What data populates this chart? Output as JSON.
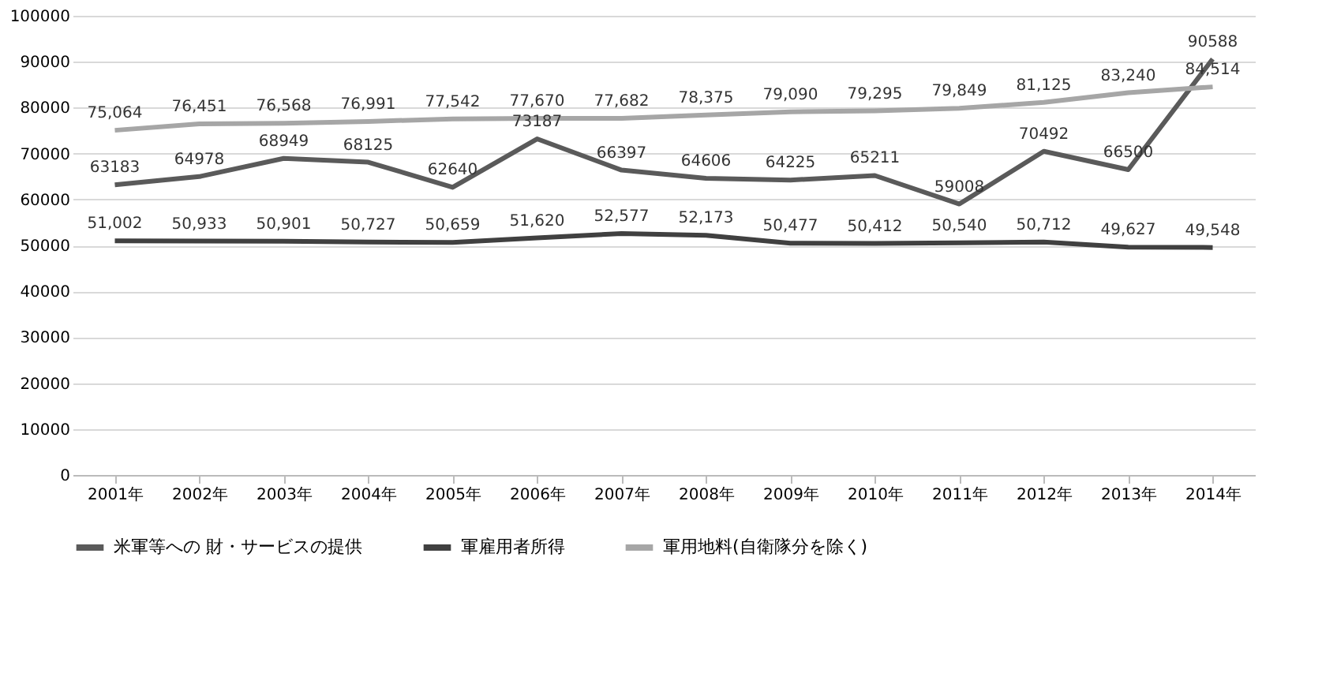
{
  "chart_data": {
    "type": "line",
    "categories": [
      "2001年",
      "2002年",
      "2003年",
      "2004年",
      "2005年",
      "2006年",
      "2007年",
      "2008年",
      "2009年",
      "2010年",
      "2011年",
      "2012年",
      "2013年",
      "2014年"
    ],
    "ylim": [
      0,
      100000
    ],
    "yticks": [
      0,
      10000,
      20000,
      30000,
      40000,
      50000,
      60000,
      70000,
      80000,
      90000,
      100000
    ],
    "grid": "y",
    "legend": "bottom",
    "marker": "none",
    "line_style": "solid",
    "series": [
      {
        "name": "米軍等への 財・サービスの提供",
        "color": "#5a5a5a",
        "values": [
          63183,
          64978,
          68949,
          68125,
          62640,
          73187,
          66397,
          64606,
          64225,
          65211,
          59008,
          70492,
          66500,
          90588
        ],
        "value_labels": [
          "63183",
          "64978",
          "68949",
          "68125",
          "62640",
          "73187",
          "66397",
          "64606",
          "64225",
          "65211",
          "59008",
          "70492",
          "66500",
          "90588"
        ]
      },
      {
        "name": "軍雇用者所得",
        "color": "#404040",
        "values": [
          51002,
          50933,
          50901,
          50727,
          50659,
          51620,
          52577,
          52173,
          50477,
          50412,
          50540,
          50712,
          49627,
          49548
        ],
        "value_labels": [
          "51,002",
          "50,933",
          "50,901",
          "50,727",
          "50,659",
          "51,620",
          "52,577",
          "52,173",
          "50,477",
          "50,412",
          "50,540",
          "50,712",
          "49,627",
          "49,548"
        ]
      },
      {
        "name": "軍用地料(自衛隊分を除く)",
        "color": "#a6a6a6",
        "values": [
          75064,
          76451,
          76568,
          76991,
          77542,
          77670,
          77682,
          78375,
          79090,
          79295,
          79849,
          81125,
          83240,
          84514
        ],
        "value_labels": [
          "75,064",
          "76,451",
          "76,568",
          "76,991",
          "77,542",
          "77,670",
          "77,682",
          "78,375",
          "79,090",
          "79,295",
          "79,849",
          "81,125",
          "83,240",
          "84,514"
        ]
      }
    ]
  }
}
